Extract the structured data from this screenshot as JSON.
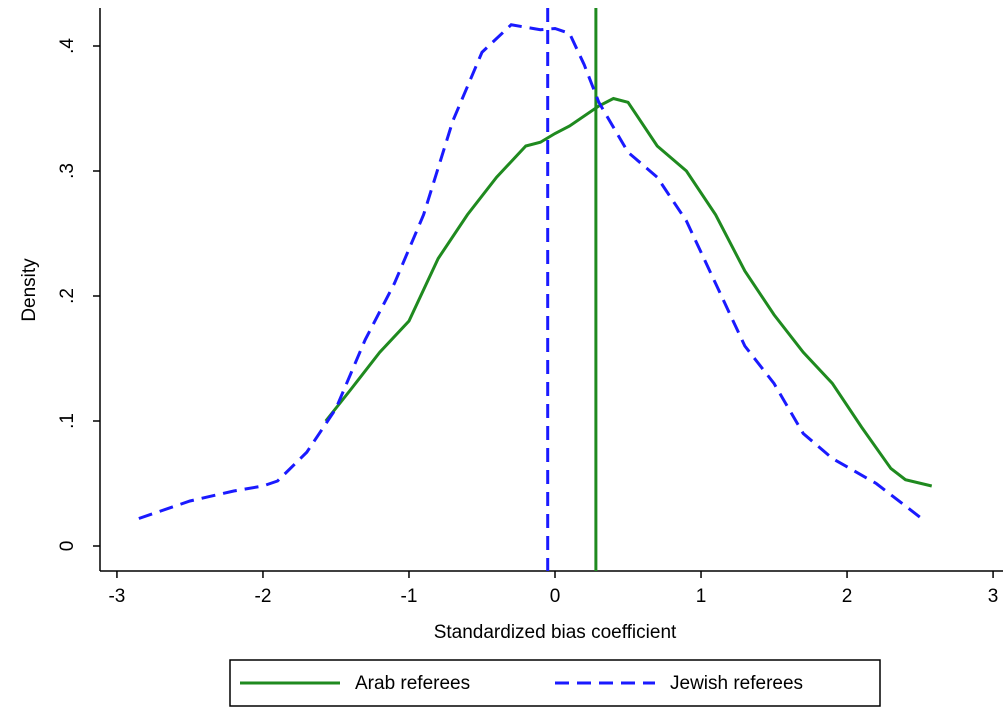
{
  "chart_data": {
    "type": "line",
    "x_label": "Standardized bias coefficient",
    "y_label": "Density",
    "xlim": [
      -3.116,
      3.068
    ],
    "ylim": [
      -0.02,
      0.4304
    ],
    "xticks": [
      -3,
      -2,
      -1,
      0,
      1,
      2,
      3
    ],
    "yticks": [
      0,
      {
        "value": 0.1,
        "label": ".1"
      },
      {
        "value": 0.2,
        "label": ".2"
      },
      {
        "value": 0.3,
        "label": ".3"
      },
      {
        "value": 0.4,
        "label": ".4"
      }
    ],
    "series": [
      {
        "name": "Arab referees",
        "color": "#1f8a1f",
        "dashed": false,
        "x": [
          -1.57,
          -1.4,
          -1.2,
          -1.0,
          -0.8,
          -0.6,
          -0.4,
          -0.2,
          -0.1,
          0.0,
          0.1,
          0.3,
          0.4,
          0.5,
          0.7,
          0.9,
          1.1,
          1.3,
          1.5,
          1.7,
          1.9,
          2.1,
          2.3,
          2.4,
          2.58
        ],
        "values": [
          0.1,
          0.125,
          0.155,
          0.18,
          0.23,
          0.265,
          0.295,
          0.32,
          0.323,
          0.33,
          0.336,
          0.352,
          0.358,
          0.355,
          0.32,
          0.3,
          0.265,
          0.22,
          0.185,
          0.155,
          0.13,
          0.095,
          0.062,
          0.053,
          0.048
        ]
      },
      {
        "name": "Jewish referees",
        "color": "#1a1aff",
        "dashed": true,
        "x": [
          -2.85,
          -2.5,
          -2.2,
          -2.0,
          -1.9,
          -1.7,
          -1.5,
          -1.3,
          -1.1,
          -0.9,
          -0.7,
          -0.5,
          -0.3,
          -0.1,
          0.0,
          0.1,
          0.2,
          0.3,
          0.5,
          0.7,
          0.9,
          1.1,
          1.3,
          1.5,
          1.7,
          1.9,
          2.2,
          2.5
        ],
        "values": [
          0.022,
          0.036,
          0.044,
          0.048,
          0.052,
          0.075,
          0.11,
          0.165,
          0.21,
          0.265,
          0.34,
          0.395,
          0.417,
          0.413,
          0.414,
          0.41,
          0.385,
          0.355,
          0.315,
          0.295,
          0.26,
          0.21,
          0.16,
          0.13,
          0.09,
          0.07,
          0.05,
          0.023
        ]
      }
    ],
    "reference_lines": [
      {
        "value": 0.28,
        "color": "#1f8a1f",
        "dashed": false
      },
      {
        "value": -0.05,
        "color": "#1a1aff",
        "dashed": true
      }
    ],
    "legend": "bottom"
  }
}
